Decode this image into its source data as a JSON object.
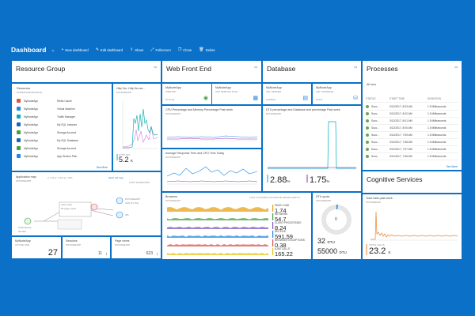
{
  "topbar": {
    "title": "Dashboard",
    "buttons": [
      {
        "icon": "plus-icon",
        "label": "New dashboard"
      },
      {
        "icon": "edit-icon",
        "label": "Edit dashboard"
      },
      {
        "icon": "share-icon",
        "label": "Share"
      },
      {
        "icon": "fullscreen-icon",
        "label": "Fullscreen"
      },
      {
        "icon": "clone-icon",
        "label": "Clone"
      },
      {
        "icon": "delete-icon",
        "label": "Delete"
      }
    ]
  },
  "resource_group": {
    "title": "Resource Group",
    "subtitle": "Resources",
    "sub2": "MYRESOURCEGROUP",
    "rows": [
      {
        "name": "MyNodeApp",
        "type": "Redis Cache",
        "color": "#d9534f"
      },
      {
        "name": "MyNodeApp",
        "type": "Virtual Machine",
        "color": "#1e88e5"
      },
      {
        "name": "MyNodeApp",
        "type": "Traffic Manager",
        "color": "#00acc1"
      },
      {
        "name": "MyNodeApp",
        "type": "My SQL Instance",
        "color": "#1565c0"
      },
      {
        "name": "MyNodeApp",
        "type": "Storage Account",
        "color": "#43a047"
      },
      {
        "name": "MyNodeApp",
        "type": "My SQL Database",
        "color": "#1565c0"
      },
      {
        "name": "MyNodeApp",
        "type": "Storage Account",
        "color": "#43a047"
      },
      {
        "name": "MyNodeApp",
        "type": "App Service Plan",
        "color": "#1e88e5"
      }
    ],
    "see_more": "See More"
  },
  "http_tile": {
    "title": "Http 2xx, Http 5xx an...",
    "sub": "MYNODEAPP",
    "legend": "HTTP 2XX",
    "value": "5.2",
    "unit": "K"
  },
  "app_map": {
    "title": "Application map",
    "sub": "MYNODEAPP",
    "legend": "● <1%  ● >=1%  ● >=5%",
    "open_link": "Open full map",
    "last": "LAST 30 MINUTES",
    "client": "Client side",
    "client_sub": "50 page views",
    "fe": "MYNODEAPP",
    "fe_sub": "4.99 (37.2%)",
    "ipa": "IPA",
    "node": "MyNodeApp",
    "node_sub": "96.66%"
  },
  "small_tiles": [
    {
      "title": "MyNodeApp",
      "sub": "ACTIVE USE",
      "value": "27"
    },
    {
      "title": "Sessions",
      "sub": "MYNODEAPP",
      "value": "11"
    },
    {
      "title": "Page views",
      "sub": "MYNODEAPP",
      "value": "623"
    }
  ],
  "web_front_end": {
    "title": "Web Front End",
    "site_title": "MyNodeApp",
    "site_sub": "WEB APP",
    "site_status": "Running",
    "plan_title": "MyNodeApp",
    "plan_sub": "APP SERVICE PLAN",
    "cpu_title": "CPU Percentage and Memory Percentage Past week",
    "cpu_sub": "MYNODEAPP",
    "resp_title": "Average Response Time and CPU Time Today",
    "resp_sub": "MYNODEAPP"
  },
  "database": {
    "title": "Database",
    "srv_title": "MyNodeApp",
    "srv_sub": "SQL SERVER",
    "srv_status": "Available",
    "db_title": "MyNodeApp",
    "db_sub": "SQL DATABASE",
    "db_status": "Online",
    "dtu_title": "DTU percentage and Database size percentage Past week",
    "dtu_sub": "MYNODEAPP",
    "v1": "2.88",
    "v1_unit": "%",
    "v2": "1.75",
    "v2_unit": "%"
  },
  "browser": {
    "title": "Browsers",
    "sub": "MYNODEAPP",
    "last": "LAST 24 HOURS (30 MINUTE GRANULARITY)",
    "stats": [
      {
        "label": "PAGE LOAD",
        "value": "1.74"
      },
      {
        "label": "NETWORK",
        "value": "54.7"
      },
      {
        "label": "CLIENT PROCESSING",
        "value": "8.24"
      },
      {
        "label": "RECEIVE",
        "value": "591.59"
      },
      {
        "label": "BROWSER EXCEPTIONS",
        "value": "0.38"
      },
      {
        "label": "AJAX CALLS",
        "value": "165.22"
      }
    ]
  },
  "dtu_quota": {
    "title": "DTU quota",
    "sub": "MYNODEAPP",
    "center": "0",
    "used": "32",
    "used_unit": "DTU",
    "total": "55000",
    "total_unit": "DTU"
  },
  "processes": {
    "title": "Processes",
    "sub": "All runs",
    "headers": [
      "STATUS",
      "START TIME",
      "DURATION"
    ],
    "rows": [
      {
        "name": "Succ...",
        "time": "3/12/2017, 8:03 AM",
        "dur": "1.5 Milliseconds"
      },
      {
        "name": "Succ...",
        "time": "3/12/2017, 8:02 AM",
        "dur": "1.5 Milliseconds"
      },
      {
        "name": "Succ...",
        "time": "3/12/2017, 8:01 AM",
        "dur": "1.5 Milliseconds"
      },
      {
        "name": "Succ...",
        "time": "3/12/2017, 8:00 AM",
        "dur": "1.5 Milliseconds"
      },
      {
        "name": "Succ...",
        "time": "3/12/2017, 7:59 AM",
        "dur": "1.5 Milliseconds"
      },
      {
        "name": "Succ...",
        "time": "3/12/2017, 7:58 AM",
        "dur": "1.5 Milliseconds"
      },
      {
        "name": "Succ...",
        "time": "3/12/2017, 7:57 AM",
        "dur": "1.5 Milliseconds"
      },
      {
        "name": "Succ...",
        "time": "3/12/2017, 7:56 AM",
        "dur": "1.5 Milliseconds"
      }
    ],
    "see_more": "See More"
  },
  "cognitive": {
    "title": "Cognitive Services",
    "chart_title": "Total Calls past week",
    "chart_sub": "MYNODEAPP",
    "legend": "TOTAL CALLS",
    "value": "23.2",
    "unit": "K"
  },
  "see_more": "See More"
}
